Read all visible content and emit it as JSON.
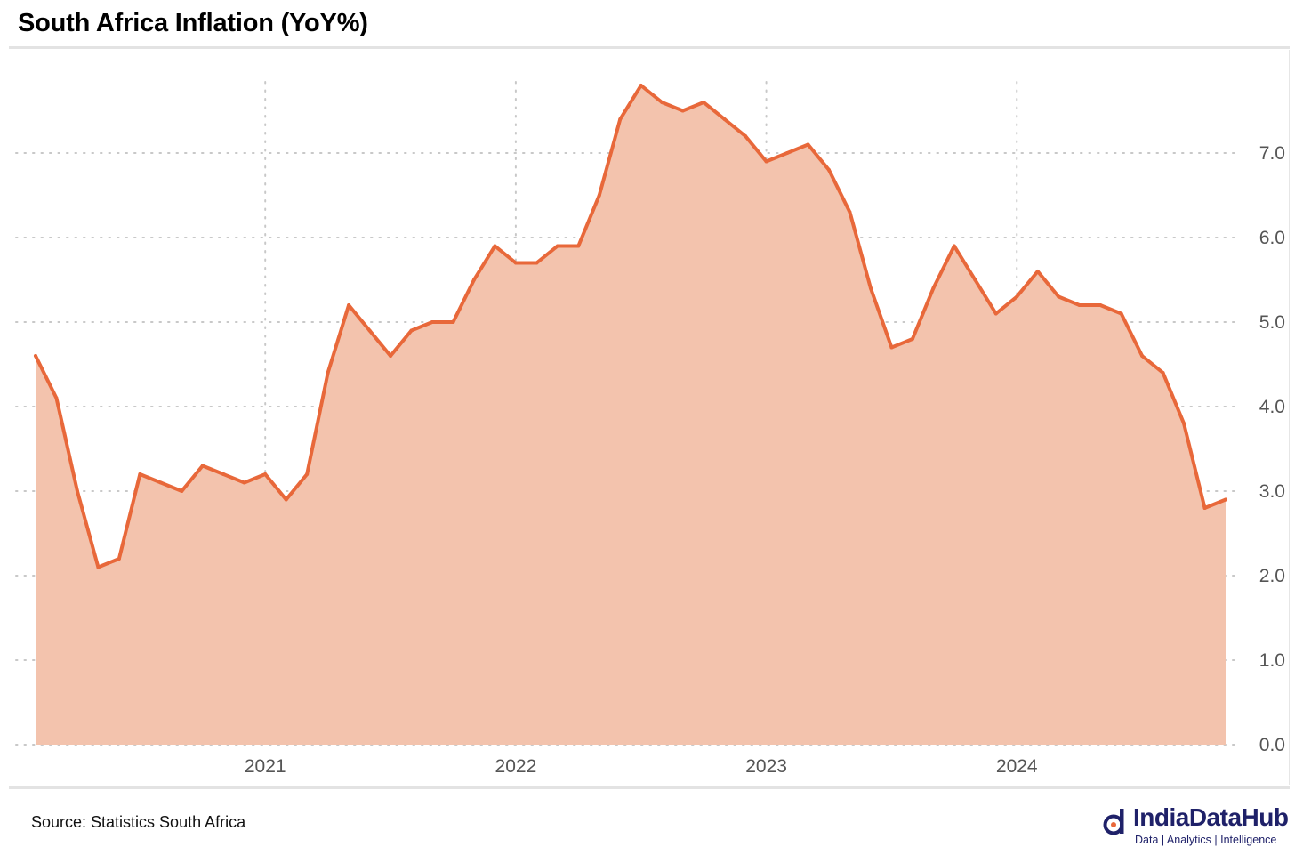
{
  "title": "South Africa Inflation (YoY%)",
  "source": "Source: Statistics South Africa",
  "brand": {
    "name": "IndiaDataHub",
    "tagline": "Data | Analytics | Intelligence"
  },
  "colors": {
    "line": "#e8683a",
    "fill": "#f3c3ad",
    "grid": "#c8c8c8",
    "axis_text": "#555555",
    "brand": "#1f2169"
  },
  "chart_data": {
    "type": "area",
    "title": "South Africa Inflation (YoY%)",
    "xlabel": "",
    "ylabel": "",
    "y_axis_side": "right",
    "ylim": [
      0,
      7.9
    ],
    "y_ticks": [
      0.0,
      1.0,
      2.0,
      3.0,
      4.0,
      5.0,
      6.0,
      7.0
    ],
    "y_tick_labels": [
      "0.0",
      "1.0",
      "2.0",
      "3.0",
      "4.0",
      "5.0",
      "6.0",
      "7.0"
    ],
    "x_ticks": [
      "2021-01",
      "2022-01",
      "2023-01",
      "2024-01"
    ],
    "x_tick_labels": [
      "2021",
      "2022",
      "2023",
      "2024"
    ],
    "grid": true,
    "x": [
      "2020-02",
      "2020-03",
      "2020-04",
      "2020-05",
      "2020-06",
      "2020-07",
      "2020-08",
      "2020-09",
      "2020-10",
      "2020-11",
      "2020-12",
      "2021-01",
      "2021-02",
      "2021-03",
      "2021-04",
      "2021-05",
      "2021-06",
      "2021-07",
      "2021-08",
      "2021-09",
      "2021-10",
      "2021-11",
      "2021-12",
      "2022-01",
      "2022-02",
      "2022-03",
      "2022-04",
      "2022-05",
      "2022-06",
      "2022-07",
      "2022-08",
      "2022-09",
      "2022-10",
      "2022-11",
      "2022-12",
      "2023-01",
      "2023-02",
      "2023-03",
      "2023-04",
      "2023-05",
      "2023-06",
      "2023-07",
      "2023-08",
      "2023-09",
      "2023-10",
      "2023-11",
      "2023-12",
      "2024-01",
      "2024-02",
      "2024-03",
      "2024-04",
      "2024-05",
      "2024-06",
      "2024-07",
      "2024-08",
      "2024-09",
      "2024-10",
      "2024-11"
    ],
    "series": [
      {
        "values": [
          4.6,
          4.1,
          3.0,
          2.1,
          2.2,
          3.2,
          3.1,
          3.0,
          3.3,
          3.2,
          3.1,
          3.2,
          2.9,
          3.2,
          4.4,
          5.2,
          4.9,
          4.6,
          4.9,
          5.0,
          5.0,
          5.5,
          5.9,
          5.7,
          5.7,
          5.9,
          5.9,
          6.5,
          7.4,
          7.8,
          7.6,
          7.5,
          7.6,
          7.4,
          7.2,
          6.9,
          7.0,
          7.1,
          6.8,
          6.3,
          5.4,
          4.7,
          4.8,
          5.4,
          5.9,
          5.5,
          5.1,
          5.3,
          5.6,
          5.3,
          5.2,
          5.2,
          5.1,
          4.6,
          4.4,
          3.8,
          2.8,
          2.9
        ]
      }
    ]
  }
}
